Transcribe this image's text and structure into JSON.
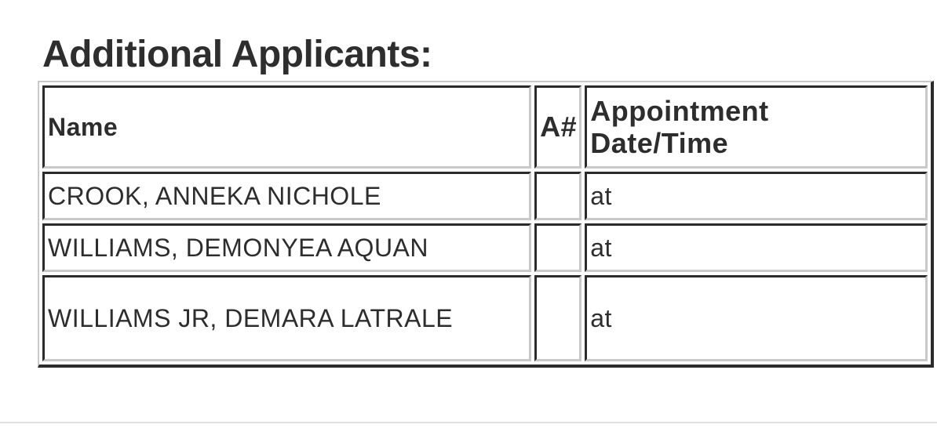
{
  "page": {
    "heading": "Additional Applicants:"
  },
  "table": {
    "columns": [
      {
        "label": "Name"
      },
      {
        "label": "A#"
      },
      {
        "label": "Appointment Date/Time"
      }
    ],
    "rows": [
      {
        "name": "CROOK, ANNEKA NICHOLE",
        "a_number": "",
        "appointment": "at"
      },
      {
        "name": "WILLIAMS, DEMONYEA AQUAN",
        "a_number": "",
        "appointment": "at"
      },
      {
        "name": "WILLIAMS JR, DEMARA LATRALE",
        "a_number": "",
        "appointment": "at"
      }
    ]
  },
  "colors": {
    "text": "#2d2d2d",
    "border_dark": "#2b2b2b",
    "border_light": "#c9c9c9",
    "divider": "#e2e2e2",
    "background": "#ffffff"
  }
}
